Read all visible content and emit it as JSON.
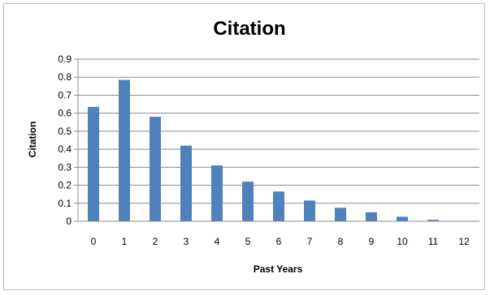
{
  "chart_data": {
    "type": "bar",
    "title": "Citation",
    "xlabel": "Past Years",
    "ylabel": "Citation",
    "categories": [
      "0",
      "1",
      "2",
      "3",
      "4",
      "5",
      "6",
      "7",
      "8",
      "9",
      "10",
      "11",
      "12"
    ],
    "values": [
      0.635,
      0.785,
      0.58,
      0.42,
      0.31,
      0.22,
      0.165,
      0.115,
      0.075,
      0.05,
      0.025,
      0.008,
      0.0
    ],
    "ylim": [
      0,
      0.9
    ],
    "yticks": [
      "0",
      "0.1",
      "0.2",
      "0.3",
      "0.4",
      "0.5",
      "0.6",
      "0.7",
      "0.8",
      "0.9"
    ],
    "grid": true,
    "legend": "none",
    "colors": {
      "bar": "#4f81bd",
      "grid": "#8c8c8c",
      "axis": "#8c8c8c"
    }
  }
}
